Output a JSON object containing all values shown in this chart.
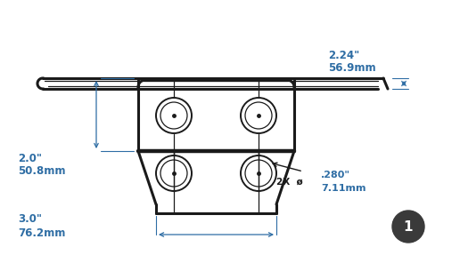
{
  "bg_color": "#ffffff",
  "line_color": "#1a1a1a",
  "dim_color": "#2e6da4",
  "fig_width": 5.16,
  "fig_height": 3.14,
  "dpi": 100,
  "dim_labels": {
    "top_width_in": "2.24\"",
    "top_width_mm": "56.9mm",
    "left_height_in": "2.0\"",
    "left_height_mm": "50.8mm",
    "bottom_width_in": "3.0\"",
    "bottom_width_mm": "76.2mm",
    "hole_dia_in": ".280\"",
    "hole_dia_mm": "7.11mm",
    "hole_label": "2X  ø"
  },
  "badge_label": "1",
  "badge_color": "#3a3a3a"
}
